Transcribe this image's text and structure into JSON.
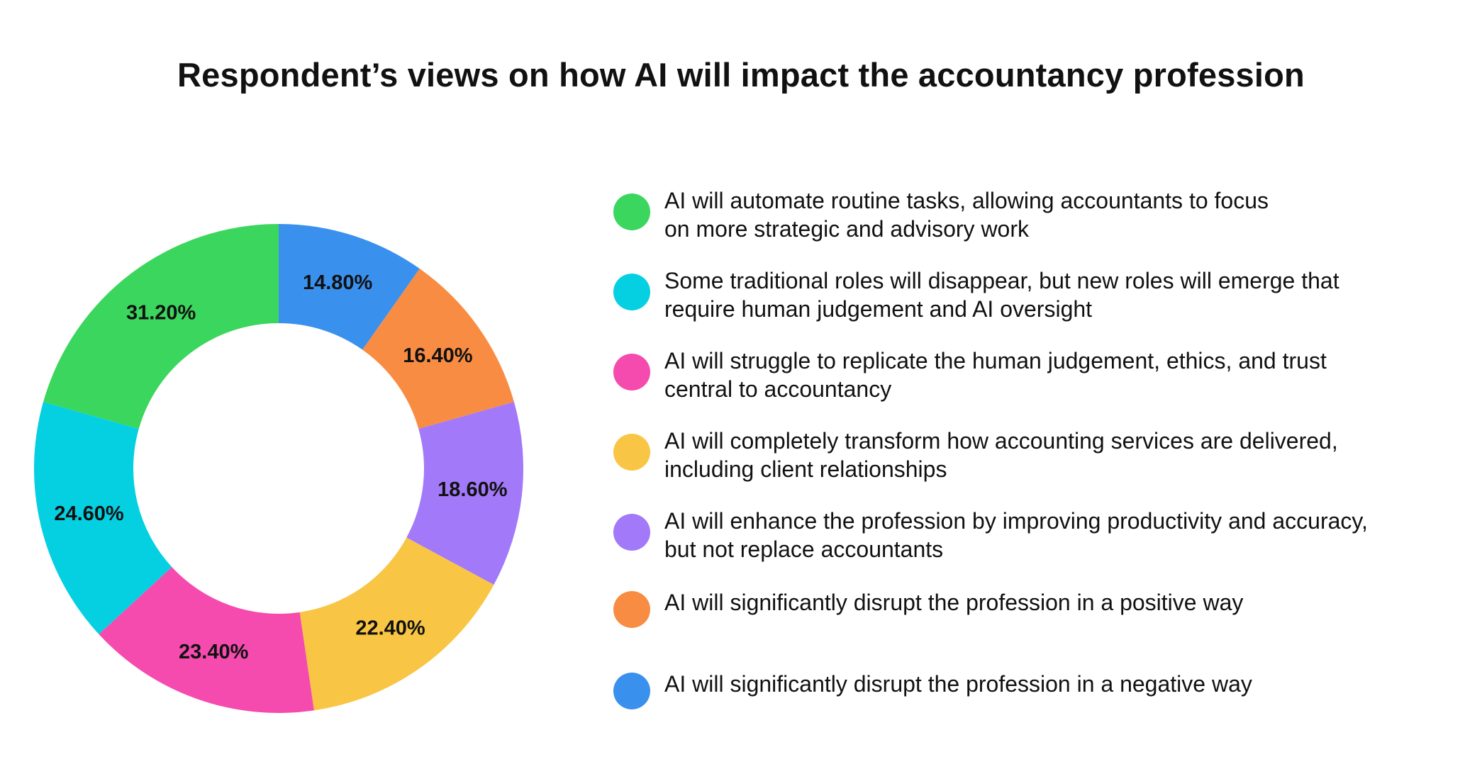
{
  "chart_data": {
    "type": "donut",
    "title": "Respondent’s views on how AI will impact the accountancy profession",
    "slices": [
      {
        "label": "AI will significantly disrupt the profession in a negative way",
        "value": 14.8,
        "display": "14.80%",
        "color": "#3a91ed"
      },
      {
        "label": "AI will significantly disrupt the profession in a positive way",
        "value": 16.4,
        "display": "16.40%",
        "color": "#f98c43"
      },
      {
        "label": "AI will enhance the profession by improving productivity and accuracy, but not replace accountants",
        "value": 18.6,
        "display": "18.60%",
        "color": "#a279f9"
      },
      {
        "label": "AI will completely transform how accounting services are delivered, including client relationships",
        "value": 22.4,
        "display": "22.40%",
        "color": "#f8c644"
      },
      {
        "label": "AI will struggle to replicate the human judgement, ethics, and trust central to accountancy",
        "value": 23.4,
        "display": "23.40%",
        "color": "#f54bae"
      },
      {
        "label": "Some traditional roles will disappear, but new roles will emerge that require human judgement and AI oversight",
        "value": 24.6,
        "display": "24.60%",
        "color": "#05d0e2"
      },
      {
        "label": "AI will automate routine tasks, allowing accountants to focus on more strategic and advisory work",
        "value": 31.2,
        "display": "31.20%",
        "color": "#3bd65d"
      }
    ],
    "legend": [
      {
        "text": "AI will automate routine tasks, allowing accountants to focus\non more strategic and advisory work",
        "color": "#3bd65d"
      },
      {
        "text": "Some traditional roles will disappear, but new roles will emerge that\nrequire human judgement and AI oversight",
        "color": "#05d0e2"
      },
      {
        "text": "AI will struggle to replicate the human judgement, ethics, and trust\ncentral to accountancy",
        "color": "#f54bae"
      },
      {
        "text": "AI will completely transform how accounting services are delivered,\nincluding client relationships",
        "color": "#f8c644"
      },
      {
        "text": "AI will enhance the profession by improving productivity and accuracy,\nbut not replace accountants",
        "color": "#a279f9"
      },
      {
        "text": "AI will significantly disrupt the profession in a positive way",
        "color": "#f98c43"
      },
      {
        "text": "AI will significantly disrupt the profession in a negative way",
        "color": "#3a91ed"
      }
    ],
    "legend_position": "right"
  }
}
